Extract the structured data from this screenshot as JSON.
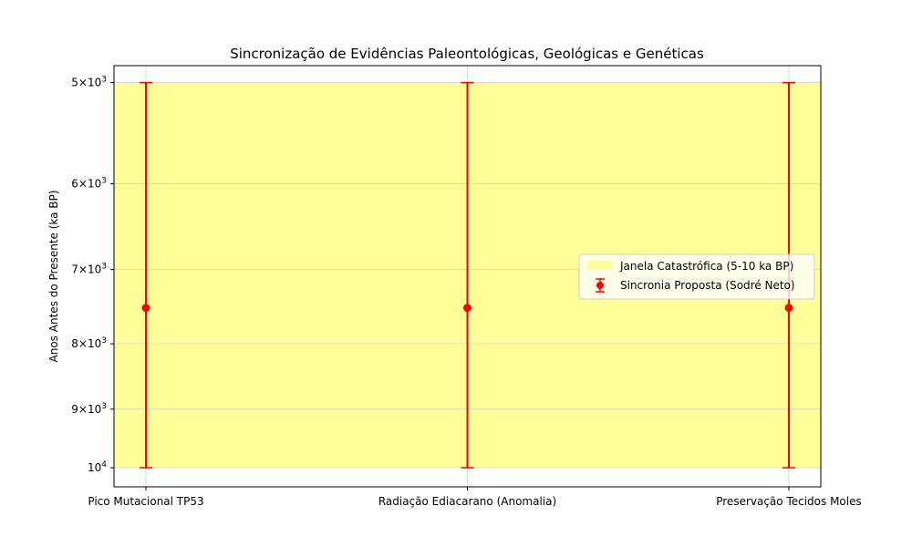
{
  "chart_data": {
    "type": "scatter",
    "title": "Sincronização de Evidências Paleontológicas, Geológicas e Genéticas",
    "xlabel": "",
    "ylabel": "Anos Antes do Presente (ka BP)",
    "categories": [
      "Pico Mutacional TP53",
      "Radiação Ediacarano (Anomalia)",
      "Preservação Tecidos Moles"
    ],
    "y_scale": "log",
    "y_inverted": true,
    "ylim": [
      4850,
      10350
    ],
    "y_ticks": [
      {
        "value": 5000,
        "base": "5",
        "exp": "3"
      },
      {
        "value": 6000,
        "base": "6",
        "exp": "3"
      },
      {
        "value": 7000,
        "base": "7",
        "exp": "3"
      },
      {
        "value": 8000,
        "base": "8",
        "exp": "3"
      },
      {
        "value": 9000,
        "base": "9",
        "exp": "3"
      },
      {
        "value": 10000,
        "base": "10",
        "exp": "4"
      }
    ],
    "grid": true,
    "span": {
      "name": "Janela Catastrófica (5-10 ka BP)",
      "from": 5000,
      "to": 10000,
      "color": "#ffff99"
    },
    "series": [
      {
        "name": "Sincronia Proposta (Sodré Neto)",
        "color": "#ff0000",
        "values": [
          7500,
          7500,
          7500
        ],
        "err_low": [
          5000,
          5000,
          5000
        ],
        "err_high": [
          10000,
          10000,
          10000
        ]
      }
    ],
    "legend_position": "center-right"
  }
}
